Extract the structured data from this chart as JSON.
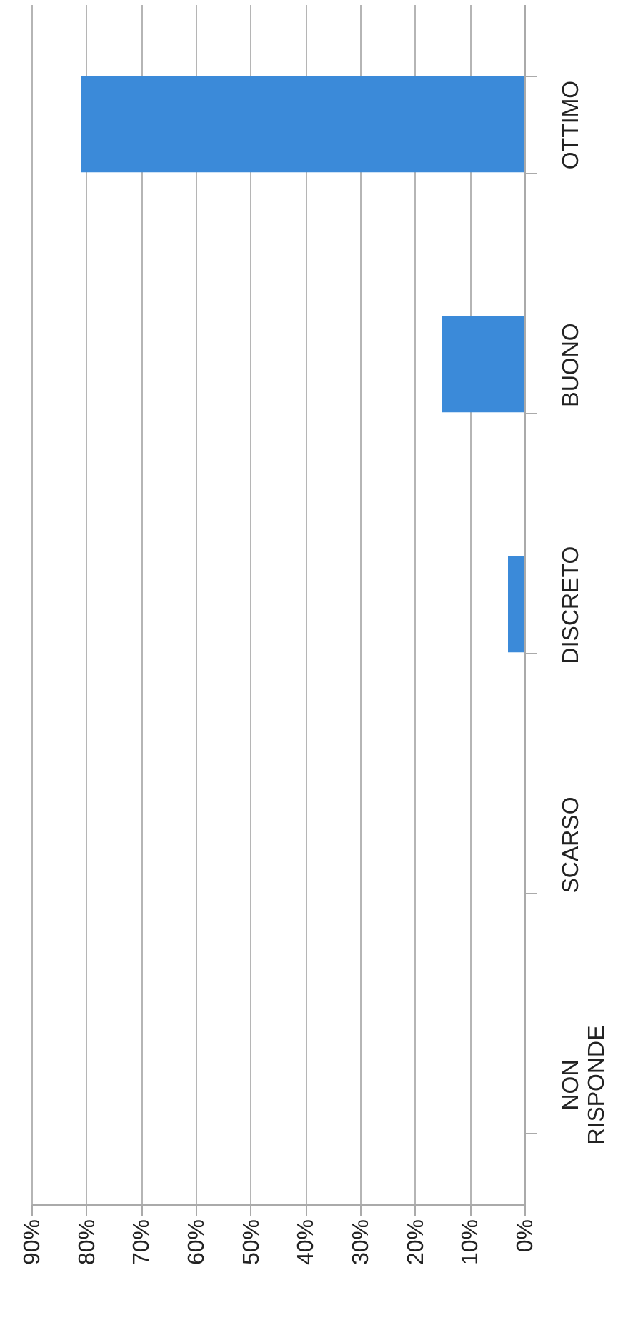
{
  "chart_data": {
    "type": "bar",
    "orientation": "horizontal",
    "categories": [
      "OTTIMO",
      "BUONO",
      "DISCRETO",
      "SCARSO",
      "NON RISPONDE"
    ],
    "values": [
      81,
      15,
      3,
      0,
      0
    ],
    "color": "#3b8ad9",
    "xlim": [
      90,
      0
    ],
    "xticks": [
      {
        "value": 90,
        "label": "90%"
      },
      {
        "value": 80,
        "label": "80%"
      },
      {
        "value": 70,
        "label": "70%"
      },
      {
        "value": 60,
        "label": "60%"
      },
      {
        "value": 50,
        "label": "50%"
      },
      {
        "value": 40,
        "label": "40%"
      },
      {
        "value": 30,
        "label": "30%"
      },
      {
        "value": 20,
        "label": "20%"
      },
      {
        "value": 10,
        "label": "10%"
      },
      {
        "value": 0,
        "label": "0%"
      }
    ],
    "grid": "x"
  }
}
